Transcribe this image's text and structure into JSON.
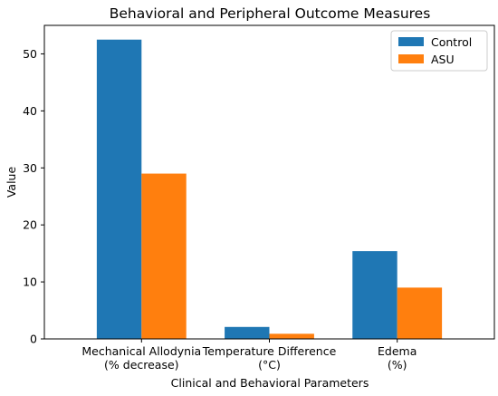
{
  "chart_data": {
    "type": "bar",
    "title": "Behavioral and Peripheral Outcome Measures",
    "xlabel": "Clinical and Behavioral Parameters",
    "ylabel": "Value",
    "categories": [
      [
        "Mechanical Allodynia",
        "(% decrease)"
      ],
      [
        "Temperature Difference",
        "(°C)"
      ],
      [
        "Edema",
        "(%)"
      ]
    ],
    "series": [
      {
        "name": "Control",
        "color": "#1f77b4",
        "values": [
          52.5,
          2.1,
          15.4
        ]
      },
      {
        "name": "ASU",
        "color": "#ff7f0e",
        "values": [
          29.0,
          0.9,
          9.0
        ]
      }
    ],
    "ylim": [
      0,
      55
    ],
    "yticks": [
      0,
      10,
      20,
      30,
      40,
      50
    ],
    "grid": false,
    "legend": "top-right"
  }
}
